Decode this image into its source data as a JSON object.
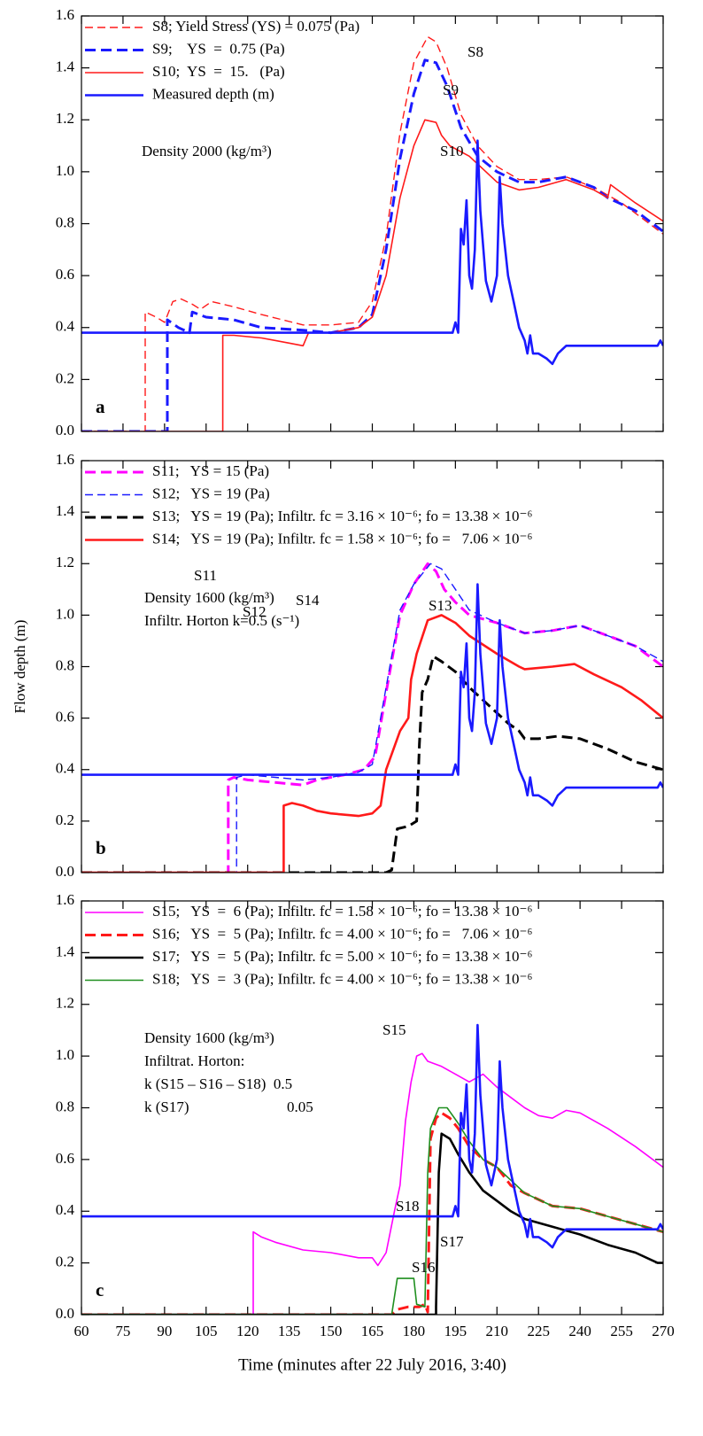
{
  "chart_data": [
    {
      "type": "line",
      "panel_label": "a",
      "legend": "upper left",
      "xlim": [
        60,
        270
      ],
      "ylim": [
        0,
        1.6
      ],
      "xticks": [
        60,
        75,
        90,
        105,
        120,
        135,
        150,
        165,
        180,
        195,
        210,
        225,
        240,
        255,
        270
      ],
      "yticks": [
        {
          "value": 0,
          "label": "0.0"
        },
        0.2,
        0.4,
        0.6,
        0.8,
        {
          "value": 1,
          "label": "1.0"
        },
        1.2,
        1.4,
        1.6
      ],
      "notes": [
        "Density 2000 (kg/m³)"
      ],
      "annotations": [
        "S8",
        "S9",
        "S10"
      ],
      "series": [
        {
          "name": "S8; Yield Stress (YS) = 0.075 (Pa)",
          "color": "#ff1a1a",
          "linestyle": "dashed",
          "x": [
            60,
            83,
            83,
            87,
            90,
            93,
            96,
            100,
            103,
            107,
            115,
            125,
            140,
            150,
            160,
            165,
            170,
            175,
            180,
            185,
            188,
            192,
            197,
            203,
            210,
            218,
            225,
            235,
            245,
            255,
            265,
            270
          ],
          "values": [
            0,
            0,
            0.46,
            0.44,
            0.42,
            0.5,
            0.51,
            0.49,
            0.47,
            0.5,
            0.48,
            0.45,
            0.41,
            0.41,
            0.42,
            0.5,
            0.75,
            1.15,
            1.42,
            1.52,
            1.5,
            1.4,
            1.22,
            1.1,
            1.02,
            0.97,
            0.97,
            0.98,
            0.94,
            0.88,
            0.8,
            0.76
          ]
        },
        {
          "name": "S9;    YS  =  0.75 (Pa)",
          "color": "#1a1aff",
          "linestyle": "dashed-thick",
          "x": [
            60,
            91,
            91,
            95,
            99,
            100,
            105,
            115,
            125,
            140,
            150,
            160,
            165,
            170,
            175,
            180,
            184,
            188,
            192,
            197,
            203,
            210,
            218,
            225,
            235,
            245,
            250,
            260,
            270
          ],
          "values": [
            0,
            0,
            0.43,
            0.4,
            0.38,
            0.46,
            0.44,
            0.43,
            0.4,
            0.39,
            0.38,
            0.4,
            0.45,
            0.7,
            1.05,
            1.3,
            1.43,
            1.42,
            1.33,
            1.17,
            1.06,
            1,
            0.96,
            0.96,
            0.98,
            0.94,
            0.9,
            0.85,
            0.77
          ]
        },
        {
          "name": "S10;  YS  =  15.   (Pa)",
          "color": "#ff1a1a",
          "linestyle": "solid",
          "x": [
            60,
            111,
            111,
            115,
            125,
            135,
            140,
            142,
            150,
            160,
            165,
            170,
            175,
            180,
            184,
            188,
            190,
            193,
            200,
            210,
            218,
            225,
            235,
            245,
            250,
            251,
            260,
            270
          ],
          "values": [
            0,
            0,
            0.37,
            0.37,
            0.36,
            0.34,
            0.33,
            0.38,
            0.38,
            0.4,
            0.44,
            0.6,
            0.9,
            1.1,
            1.2,
            1.19,
            1.14,
            1.1,
            1.06,
            0.96,
            0.93,
            0.94,
            0.97,
            0.93,
            0.9,
            0.95,
            0.88,
            0.81
          ]
        },
        {
          "name": "Measured depth (m)",
          "color": "#1a1aff",
          "linestyle": "solid-thick",
          "x": [
            60,
            194,
            195,
            196,
            197,
            198,
            199,
            200,
            201,
            202,
            203,
            204,
            206,
            208,
            210,
            211,
            212,
            214,
            216,
            218,
            220,
            221,
            222,
            223,
            225,
            228,
            230,
            232,
            235,
            240,
            268,
            269,
            270
          ],
          "values": [
            0.38,
            0.38,
            0.42,
            0.38,
            0.78,
            0.72,
            0.89,
            0.6,
            0.55,
            0.7,
            1.12,
            0.85,
            0.58,
            0.5,
            0.6,
            0.98,
            0.8,
            0.6,
            0.5,
            0.4,
            0.35,
            0.3,
            0.37,
            0.3,
            0.3,
            0.28,
            0.26,
            0.3,
            0.33,
            0.33,
            0.33,
            0.35,
            0.33
          ]
        }
      ]
    },
    {
      "type": "line",
      "panel_label": "b",
      "legend": "upper left",
      "ylabel": "Flow depth (m)",
      "xlim": [
        60,
        270
      ],
      "ylim": [
        0,
        1.6
      ],
      "xticks": [
        60,
        75,
        90,
        105,
        120,
        135,
        150,
        165,
        180,
        195,
        210,
        225,
        240,
        255,
        270
      ],
      "yticks": [
        {
          "value": 0,
          "label": "0.0"
        },
        0.2,
        0.4,
        0.6,
        0.8,
        {
          "value": 1,
          "label": "1.0"
        },
        1.2,
        1.4,
        1.6
      ],
      "notes": [
        "Density 1600 (kg/m³)",
        "Infiltr. Horton k=0.5 (s⁻¹)"
      ],
      "annotations": [
        "S11",
        "S12",
        "S14",
        "S13"
      ],
      "series": [
        {
          "name": "S11;   YS = 15 (Pa)",
          "color": "#ff00ff",
          "linestyle": "dashed-thick",
          "x": [
            60,
            113,
            113,
            115,
            120,
            130,
            140,
            145,
            155,
            162,
            166,
            170,
            175,
            180,
            185,
            188,
            191,
            195,
            200,
            210,
            220,
            230,
            240,
            250,
            260,
            270
          ],
          "values": [
            0,
            0,
            0.36,
            0.37,
            0.36,
            0.35,
            0.34,
            0.36,
            0.38,
            0.4,
            0.45,
            0.7,
            1,
            1.12,
            1.2,
            1.17,
            1.1,
            1.05,
            1,
            0.97,
            0.93,
            0.94,
            0.96,
            0.92,
            0.88,
            0.8
          ]
        },
        {
          "name": "S12;   YS = 19 (Pa)",
          "color": "#1a1aff",
          "linestyle": "dashed",
          "x": [
            60,
            116,
            116,
            120,
            130,
            140,
            150,
            160,
            165,
            170,
            175,
            180,
            186,
            190,
            195,
            200,
            210,
            220,
            230,
            240,
            250,
            260,
            270
          ],
          "values": [
            0,
            0,
            0.37,
            0.38,
            0.37,
            0.36,
            0.37,
            0.39,
            0.42,
            0.72,
            1.02,
            1.12,
            1.2,
            1.18,
            1.1,
            1.02,
            0.97,
            0.93,
            0.94,
            0.96,
            0.92,
            0.88,
            0.82
          ]
        },
        {
          "name": "S13;   YS = 19 (Pa); Infiltr. fc = 3.16 × 10⁻⁶; fo = 13.38 × 10⁻⁶",
          "color": "#000000",
          "linestyle": "dashed-thick",
          "x": [
            60,
            170,
            172,
            174,
            178,
            181,
            182,
            183,
            185,
            187,
            190,
            195,
            200,
            205,
            210,
            214,
            218,
            220,
            225,
            232,
            240,
            250,
            260,
            270
          ],
          "values": [
            0,
            0,
            0.01,
            0.17,
            0.18,
            0.2,
            0.5,
            0.7,
            0.75,
            0.84,
            0.82,
            0.78,
            0.72,
            0.67,
            0.62,
            0.58,
            0.55,
            0.52,
            0.52,
            0.53,
            0.52,
            0.48,
            0.43,
            0.4
          ]
        },
        {
          "name": "S14;   YS = 19 (Pa); Infiltr. fc = 1.58 × 10⁻⁶; fo =   7.06 × 10⁻⁶",
          "color": "#ff1a1a",
          "linestyle": "solid-thick",
          "x": [
            60,
            133,
            133,
            136,
            140,
            145,
            150,
            160,
            165,
            168,
            170,
            175,
            178,
            179,
            181,
            185,
            190,
            195,
            200,
            210,
            218,
            220,
            230,
            238,
            245,
            255,
            262,
            270
          ],
          "values": [
            0,
            0,
            0.26,
            0.27,
            0.26,
            0.24,
            0.23,
            0.22,
            0.23,
            0.26,
            0.4,
            0.55,
            0.6,
            0.75,
            0.85,
            0.98,
            1,
            0.97,
            0.92,
            0.85,
            0.8,
            0.79,
            0.8,
            0.81,
            0.77,
            0.72,
            0.67,
            0.6
          ]
        },
        {
          "color": "#1a1aff",
          "linestyle": "solid-thick",
          "x": [
            60,
            194,
            195,
            196,
            197,
            198,
            199,
            200,
            201,
            202,
            203,
            204,
            206,
            208,
            210,
            211,
            212,
            214,
            216,
            218,
            220,
            221,
            222,
            223,
            225,
            228,
            230,
            232,
            235,
            240,
            268,
            269,
            270
          ],
          "values": [
            0.38,
            0.38,
            0.42,
            0.38,
            0.78,
            0.72,
            0.89,
            0.6,
            0.55,
            0.7,
            1.12,
            0.85,
            0.58,
            0.5,
            0.6,
            0.98,
            0.8,
            0.6,
            0.5,
            0.4,
            0.35,
            0.3,
            0.37,
            0.3,
            0.3,
            0.28,
            0.26,
            0.3,
            0.33,
            0.33,
            0.33,
            0.35,
            0.33
          ]
        }
      ]
    },
    {
      "type": "line",
      "panel_label": "c",
      "legend": "upper left",
      "xlabel": "Time (minutes after 22 July 2016, 3:40)",
      "xlim": [
        60,
        270
      ],
      "ylim": [
        0,
        1.6
      ],
      "xticks": [
        60,
        75,
        90,
        105,
        120,
        135,
        150,
        165,
        180,
        195,
        210,
        225,
        240,
        255,
        270
      ],
      "yticks": [
        {
          "value": 0,
          "label": "0.0"
        },
        0.2,
        0.4,
        0.6,
        0.8,
        {
          "value": 1,
          "label": "1.0"
        },
        1.2,
        1.4,
        1.6
      ],
      "notes": [
        "Density 1600 (kg/m³)",
        "Infiltrat. Horton:",
        "k (S15 – S16 – S18)  0.5",
        "k (S17)                          0.05"
      ],
      "annotations": [
        "S15",
        "S18",
        "S17",
        "S16"
      ],
      "series": [
        {
          "name": "S15;   YS  =  6 (Pa); Infiltr. fc = 1.58 × 10⁻⁶; fo = 13.38 × 10⁻⁶",
          "color": "#ff00ff",
          "linestyle": "solid",
          "x": [
            60,
            122,
            122,
            125,
            130,
            140,
            150,
            160,
            165,
            167,
            170,
            173,
            175,
            177,
            179,
            181,
            183,
            185,
            190,
            195,
            200,
            205,
            210,
            215,
            220,
            225,
            230,
            235,
            240,
            250,
            260,
            270
          ],
          "values": [
            0,
            0,
            0.32,
            0.3,
            0.28,
            0.25,
            0.24,
            0.22,
            0.22,
            0.19,
            0.24,
            0.4,
            0.5,
            0.75,
            0.9,
            1,
            1.01,
            0.98,
            0.96,
            0.93,
            0.9,
            0.93,
            0.88,
            0.84,
            0.8,
            0.77,
            0.76,
            0.79,
            0.78,
            0.72,
            0.65,
            0.57
          ]
        },
        {
          "name": "S16;   YS  =  5 (Pa); Infiltr. fc = 4.00 × 10⁻⁶; fo =   7.06 × 10⁻⁶",
          "color": "#ff1a1a",
          "linestyle": "dashed-thick",
          "x": [
            60,
            172,
            174,
            178,
            182,
            184,
            185,
            186,
            188,
            190,
            193,
            196,
            200,
            205,
            210,
            215,
            220,
            230,
            240,
            250,
            260,
            270
          ],
          "values": [
            0,
            0,
            0.02,
            0.03,
            0.03,
            0.04,
            0.01,
            0.68,
            0.76,
            0.78,
            0.76,
            0.72,
            0.65,
            0.6,
            0.57,
            0.5,
            0.47,
            0.42,
            0.41,
            0.38,
            0.35,
            0.32
          ]
        },
        {
          "name": "S17;   YS  =  5 (Pa); Infiltr. fc = 5.00 × 10⁻⁶; fo = 13.38 × 10⁻⁶",
          "color": "#000000",
          "linestyle": "solid-thick",
          "x": [
            60,
            188,
            188,
            189,
            190,
            193,
            196,
            200,
            205,
            210,
            215,
            220,
            230,
            240,
            250,
            260,
            268,
            270
          ],
          "values": [
            0,
            0,
            0.03,
            0.55,
            0.7,
            0.68,
            0.62,
            0.55,
            0.48,
            0.44,
            0.4,
            0.37,
            0.34,
            0.31,
            0.27,
            0.24,
            0.2,
            0.2
          ]
        },
        {
          "name": "S18;   YS  =  3 (Pa); Infiltr. fc = 4.00 × 10⁻⁶; fo = 13.38 × 10⁻⁶",
          "color": "#1f8f1f",
          "linestyle": "solid",
          "x": [
            60,
            172,
            174,
            180,
            181,
            184,
            185,
            186,
            189,
            192,
            196,
            200,
            205,
            210,
            215,
            220,
            230,
            240,
            250,
            260,
            270
          ],
          "values": [
            0,
            0,
            0.14,
            0.14,
            0.04,
            0.03,
            0.55,
            0.72,
            0.8,
            0.8,
            0.74,
            0.67,
            0.6,
            0.57,
            0.52,
            0.47,
            0.42,
            0.41,
            0.38,
            0.35,
            0.32
          ]
        },
        {
          "color": "#1a1aff",
          "linestyle": "solid-thick",
          "x": [
            60,
            194,
            195,
            196,
            197,
            198,
            199,
            200,
            201,
            202,
            203,
            204,
            206,
            208,
            210,
            211,
            212,
            214,
            216,
            218,
            220,
            221,
            222,
            223,
            225,
            228,
            230,
            232,
            235,
            240,
            268,
            269,
            270
          ],
          "values": [
            0.38,
            0.38,
            0.42,
            0.38,
            0.78,
            0.72,
            0.89,
            0.6,
            0.55,
            0.7,
            1.12,
            0.85,
            0.58,
            0.5,
            0.6,
            0.98,
            0.8,
            0.6,
            0.5,
            0.4,
            0.35,
            0.3,
            0.37,
            0.3,
            0.3,
            0.28,
            0.26,
            0.3,
            0.33,
            0.33,
            0.33,
            0.35,
            0.33
          ]
        }
      ]
    }
  ]
}
